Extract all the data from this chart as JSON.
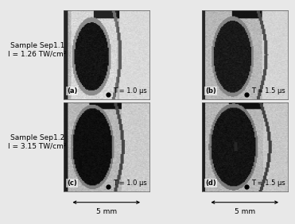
{
  "background_color": "#e8e8e8",
  "panel_labels": [
    "(a)",
    "(b)",
    "(c)",
    "(d)"
  ],
  "time_labels": [
    "T = 1.0 μs",
    "T = 1.5 μs",
    "T = 1.0 μs",
    "T = 1.5 μs"
  ],
  "row_labels": [
    "Sample Sep1.1\nI = 1.26 TW/cm²",
    "Sample Sep1.2\nI = 3.15 TW/cm²"
  ],
  "scale_label": "5 mm",
  "font_size_row": 6.5,
  "font_size_panel": 6,
  "font_size_time": 6,
  "font_size_scale": 6.5
}
